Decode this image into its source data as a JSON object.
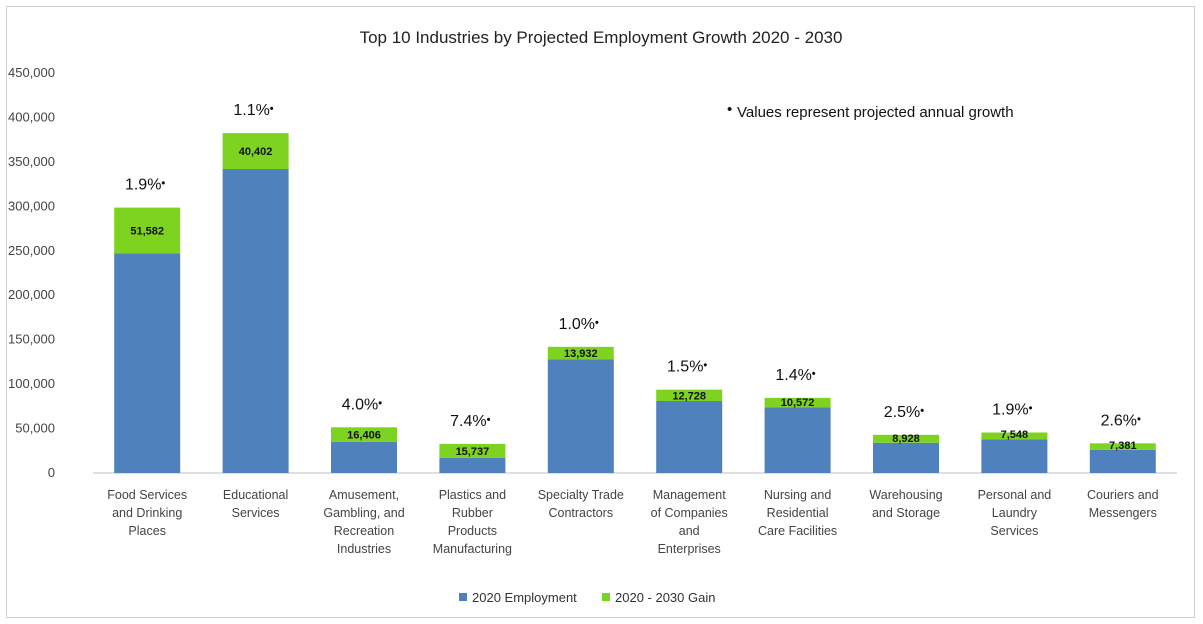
{
  "chart_data": {
    "type": "bar",
    "stacked": true,
    "title": "Top 10 Industries by Projected Employment Growth 2020 - 2030",
    "note": "Values represent projected annual growth",
    "note_marker": "•",
    "ylim": [
      0,
      450000
    ],
    "yticks": [
      0,
      50000,
      100000,
      150000,
      200000,
      250000,
      300000,
      350000,
      400000,
      450000
    ],
    "ytick_labels": [
      "0",
      "50,000",
      "100,000",
      "150,000",
      "200,000",
      "250,000",
      "300,000",
      "350,000",
      "400,000",
      "450,000"
    ],
    "grid": false,
    "legend_position": "bottom",
    "categories": [
      [
        "Food Services",
        "and Drinking",
        "Places"
      ],
      [
        "Educational",
        "Services"
      ],
      [
        "Amusement,",
        "Gambling, and",
        "Recreation",
        "Industries"
      ],
      [
        "Plastics and",
        "Rubber",
        "Products",
        "Manufacturing"
      ],
      [
        "Specialty Trade",
        "Contractors"
      ],
      [
        "Management",
        "of Companies",
        "and",
        "Enterprises"
      ],
      [
        "Nursing and",
        "Residential",
        "Care Facilities"
      ],
      [
        "Warehousing",
        "and Storage"
      ],
      [
        "Personal and",
        "Laundry",
        "Services"
      ],
      [
        "Couriers and",
        "Messengers"
      ]
    ],
    "series": [
      {
        "name": "2020 Employment",
        "color": "#4f81bd",
        "values": [
          247000,
          342000,
          35000,
          17000,
          128000,
          81000,
          74000,
          34000,
          38000,
          26000
        ]
      },
      {
        "name": "2020 - 2030 Gain",
        "color": "#7ed321",
        "values": [
          51582,
          40402,
          16406,
          15737,
          13932,
          12728,
          10572,
          8928,
          7548,
          7381
        ],
        "labels": [
          "51,582",
          "40,402",
          "16,406",
          "15,737",
          "13,932",
          "12,728",
          "10,572",
          "8,928",
          "7,548",
          "7,381"
        ]
      }
    ],
    "growth_labels": [
      "1.9%",
      "1.1%",
      "4.0%",
      "7.4%",
      "1.0%",
      "1.5%",
      "1.4%",
      "2.5%",
      "1.9%",
      "2.6%"
    ]
  }
}
